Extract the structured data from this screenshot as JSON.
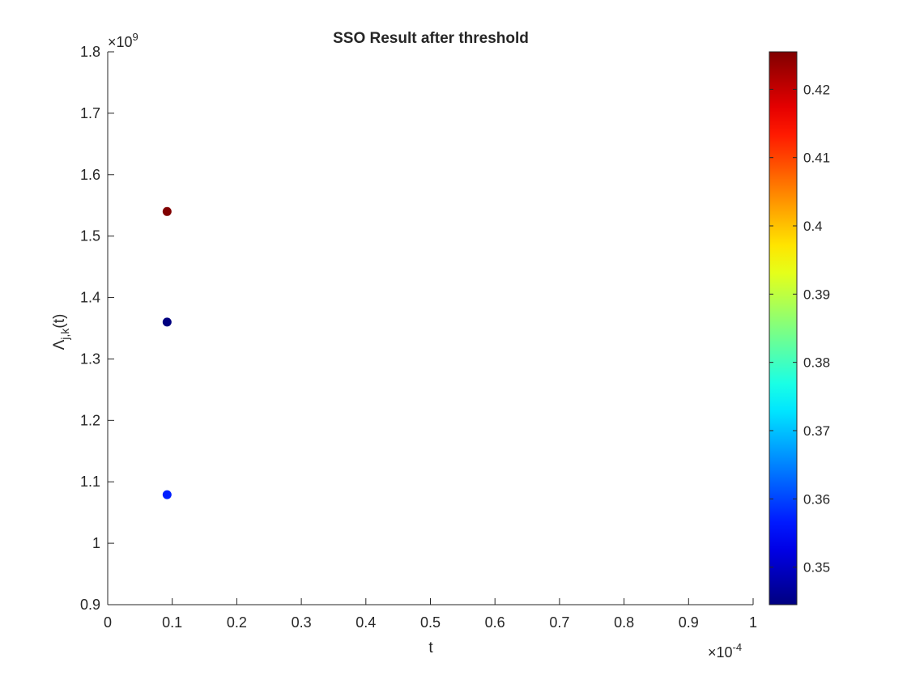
{
  "chart_data": {
    "type": "scatter",
    "title": "SSO Result after threshold",
    "xlabel": "t",
    "ylabel_main": "Λ",
    "ylabel_sub": "j,k",
    "ylabel_tail": "(t)",
    "x_exponent_label": {
      "base": "×10",
      "exp": "-4"
    },
    "y_exponent_label": {
      "base": "×10",
      "exp": "9"
    },
    "x_scale": 0.0001,
    "y_scale": 1000000000,
    "xlim": [
      0,
      1
    ],
    "ylim": [
      0.9,
      1.8
    ],
    "xticks": [
      0,
      0.1,
      0.2,
      0.3,
      0.4,
      0.5,
      0.6,
      0.7,
      0.8,
      0.9,
      1
    ],
    "xtick_labels": [
      "0",
      "0.1",
      "0.2",
      "0.3",
      "0.4",
      "0.5",
      "0.6",
      "0.7",
      "0.8",
      "0.9",
      "1"
    ],
    "yticks": [
      0.9,
      1,
      1.1,
      1.2,
      1.3,
      1.4,
      1.5,
      1.6,
      1.7,
      1.8
    ],
    "ytick_labels": [
      "0.9",
      "1",
      "1.1",
      "1.2",
      "1.3",
      "1.4",
      "1.5",
      "1.6",
      "1.7",
      "1.8"
    ],
    "grid": false,
    "points": [
      {
        "x": 0.092,
        "y": 1.54,
        "c": 0.4255
      },
      {
        "x": 0.092,
        "y": 1.36,
        "c": 0.3445
      },
      {
        "x": 0.092,
        "y": 1.079,
        "c": 0.357
      }
    ],
    "colorbar": {
      "colormap": "jet",
      "clim": [
        0.3445,
        0.4255
      ],
      "ticks": [
        0.35,
        0.36,
        0.37,
        0.38,
        0.39,
        0.4,
        0.41,
        0.42
      ],
      "tick_labels": [
        "0.35",
        "0.36",
        "0.37",
        "0.38",
        "0.39",
        "0.4",
        "0.41",
        "0.42"
      ],
      "placement": "right"
    }
  }
}
